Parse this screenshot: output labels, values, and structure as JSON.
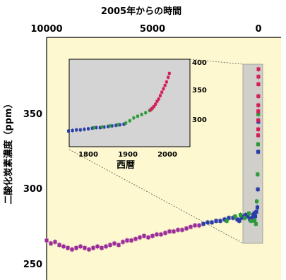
{
  "chart_data": {
    "type": "scatter",
    "x_axis_top": {
      "label": "2005年からの時間",
      "range": [
        10000,
        0
      ],
      "ticks": [
        "10000",
        "5000",
        "0"
      ]
    },
    "y_axis": {
      "label": "二酸化炭素濃度（ppm）",
      "range": [
        240,
        380
      ],
      "ticks": [
        "350",
        "300",
        "250"
      ]
    },
    "grid": false,
    "series": [
      {
        "color": "#9b2d9b",
        "points": [
          [
            10000,
            266
          ],
          [
            9800,
            264
          ],
          [
            9600,
            265
          ],
          [
            9400,
            263
          ],
          [
            9200,
            262
          ],
          [
            9000,
            261
          ],
          [
            8800,
            260
          ],
          [
            8600,
            261
          ],
          [
            8400,
            262
          ],
          [
            8200,
            261
          ],
          [
            8000,
            260
          ],
          [
            7800,
            261
          ],
          [
            7600,
            262
          ],
          [
            7400,
            261
          ],
          [
            7200,
            262
          ],
          [
            7000,
            263
          ],
          [
            6800,
            264
          ],
          [
            6600,
            263
          ],
          [
            6400,
            265
          ],
          [
            6200,
            266
          ],
          [
            6000,
            266
          ],
          [
            5800,
            267
          ],
          [
            5600,
            268
          ],
          [
            5400,
            269
          ],
          [
            5200,
            268
          ],
          [
            5000,
            269
          ],
          [
            4800,
            270
          ],
          [
            4600,
            270
          ],
          [
            4400,
            271
          ],
          [
            4200,
            272
          ],
          [
            4000,
            272
          ],
          [
            3800,
            273
          ],
          [
            3600,
            273
          ],
          [
            3400,
            274
          ],
          [
            3200,
            275
          ],
          [
            3000,
            276
          ],
          [
            2800,
            276
          ]
        ]
      },
      {
        "color": "#2a3ca8",
        "points": [
          [
            2600,
            277
          ],
          [
            2400,
            278
          ],
          [
            2200,
            278
          ],
          [
            2000,
            279
          ],
          [
            1800,
            279
          ],
          [
            1600,
            280
          ],
          [
            1400,
            281
          ],
          [
            1200,
            281
          ],
          [
            1000,
            280
          ],
          [
            900,
            279
          ],
          [
            800,
            281
          ],
          [
            700,
            282
          ],
          [
            600,
            283
          ],
          [
            500,
            282
          ],
          [
            400,
            280
          ],
          [
            300,
            281
          ],
          [
            250,
            283
          ],
          [
            200,
            284
          ],
          [
            150,
            282
          ],
          [
            100,
            285
          ],
          [
            50,
            288
          ],
          [
            30,
            300
          ],
          [
            15,
            325
          ],
          [
            5,
            345
          ]
        ]
      },
      {
        "color": "#2e9a3a",
        "points": [
          [
            1500,
            279
          ],
          [
            1100,
            282
          ],
          [
            850,
            283
          ],
          [
            650,
            281
          ],
          [
            450,
            284
          ],
          [
            350,
            279
          ],
          [
            180,
            279
          ],
          [
            120,
            277
          ],
          [
            80,
            292
          ],
          [
            40,
            310
          ],
          [
            20,
            330
          ],
          [
            10,
            350
          ]
        ]
      },
      {
        "color": "#d4205a",
        "points": [
          [
            0,
            380
          ],
          [
            2,
            375
          ],
          [
            4,
            370
          ],
          [
            6,
            362
          ],
          [
            8,
            356
          ],
          [
            10,
            352
          ],
          [
            12,
            346
          ],
          [
            14,
            340
          ],
          [
            16,
            336
          ]
        ]
      }
    ],
    "inset": {
      "x_axis": {
        "label": "西暦",
        "range": [
          1750,
          2010
        ],
        "ticks": [
          "1800",
          "1900",
          "2000"
        ]
      },
      "y_axis": {
        "range": [
          275,
          400
        ],
        "ticks": [
          "400",
          "350",
          "300"
        ]
      },
      "series": [
        {
          "color": "#2a3ca8",
          "points": [
            [
              1750,
              278
            ],
            [
              1760,
              279
            ],
            [
              1770,
              280
            ],
            [
              1780,
              280
            ],
            [
              1790,
              281
            ],
            [
              1800,
              282
            ],
            [
              1810,
              283
            ],
            [
              1820,
              284
            ],
            [
              1830,
              284
            ],
            [
              1840,
              285
            ],
            [
              1850,
              286
            ],
            [
              1860,
              287
            ],
            [
              1870,
              288
            ],
            [
              1880,
              289
            ],
            [
              1890,
              290
            ]
          ]
        },
        {
          "color": "#2e9a3a",
          "points": [
            [
              1815,
              284
            ],
            [
              1835,
              285
            ],
            [
              1855,
              287
            ],
            [
              1875,
              289
            ],
            [
              1895,
              292
            ],
            [
              1905,
              296
            ],
            [
              1915,
              301
            ],
            [
              1925,
              304
            ],
            [
              1935,
              307
            ],
            [
              1945,
              310
            ],
            [
              1955,
              314
            ],
            [
              1960,
              317
            ]
          ]
        },
        {
          "color": "#d4205a",
          "points": [
            [
              1958,
              315
            ],
            [
              1962,
              318
            ],
            [
              1966,
              321
            ],
            [
              1970,
              325
            ],
            [
              1974,
              330
            ],
            [
              1978,
              334
            ],
            [
              1982,
              340
            ],
            [
              1986,
              346
            ],
            [
              1990,
              352
            ],
            [
              1994,
              358
            ],
            [
              1998,
              364
            ],
            [
              2002,
              372
            ],
            [
              2005,
              379
            ]
          ]
        }
      ]
    }
  }
}
